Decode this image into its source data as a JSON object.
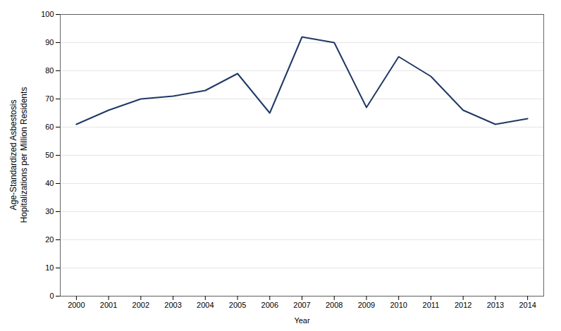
{
  "chart_data": {
    "type": "line",
    "xlabel": "Year",
    "ylabel": "Age-Standardized Asbestosis\nHopitalizations per Million Residents",
    "x": [
      2000,
      2001,
      2002,
      2003,
      2004,
      2005,
      2006,
      2007,
      2008,
      2009,
      2010,
      2011,
      2012,
      2013,
      2014
    ],
    "values": [
      61,
      66,
      70,
      71,
      73,
      79,
      65,
      92,
      90,
      67,
      85,
      78,
      66,
      61,
      63
    ],
    "color": "#1F3864",
    "xlim": [
      1999.5,
      2014.5
    ],
    "xticks": [
      2000,
      2001,
      2002,
      2003,
      2004,
      2005,
      2006,
      2007,
      2008,
      2009,
      2010,
      2011,
      2012,
      2013,
      2014
    ],
    "ylim": [
      0,
      100
    ],
    "yticks": [
      0,
      10,
      20,
      30,
      40,
      50,
      60,
      70,
      80,
      90,
      100
    ],
    "grid": true
  }
}
